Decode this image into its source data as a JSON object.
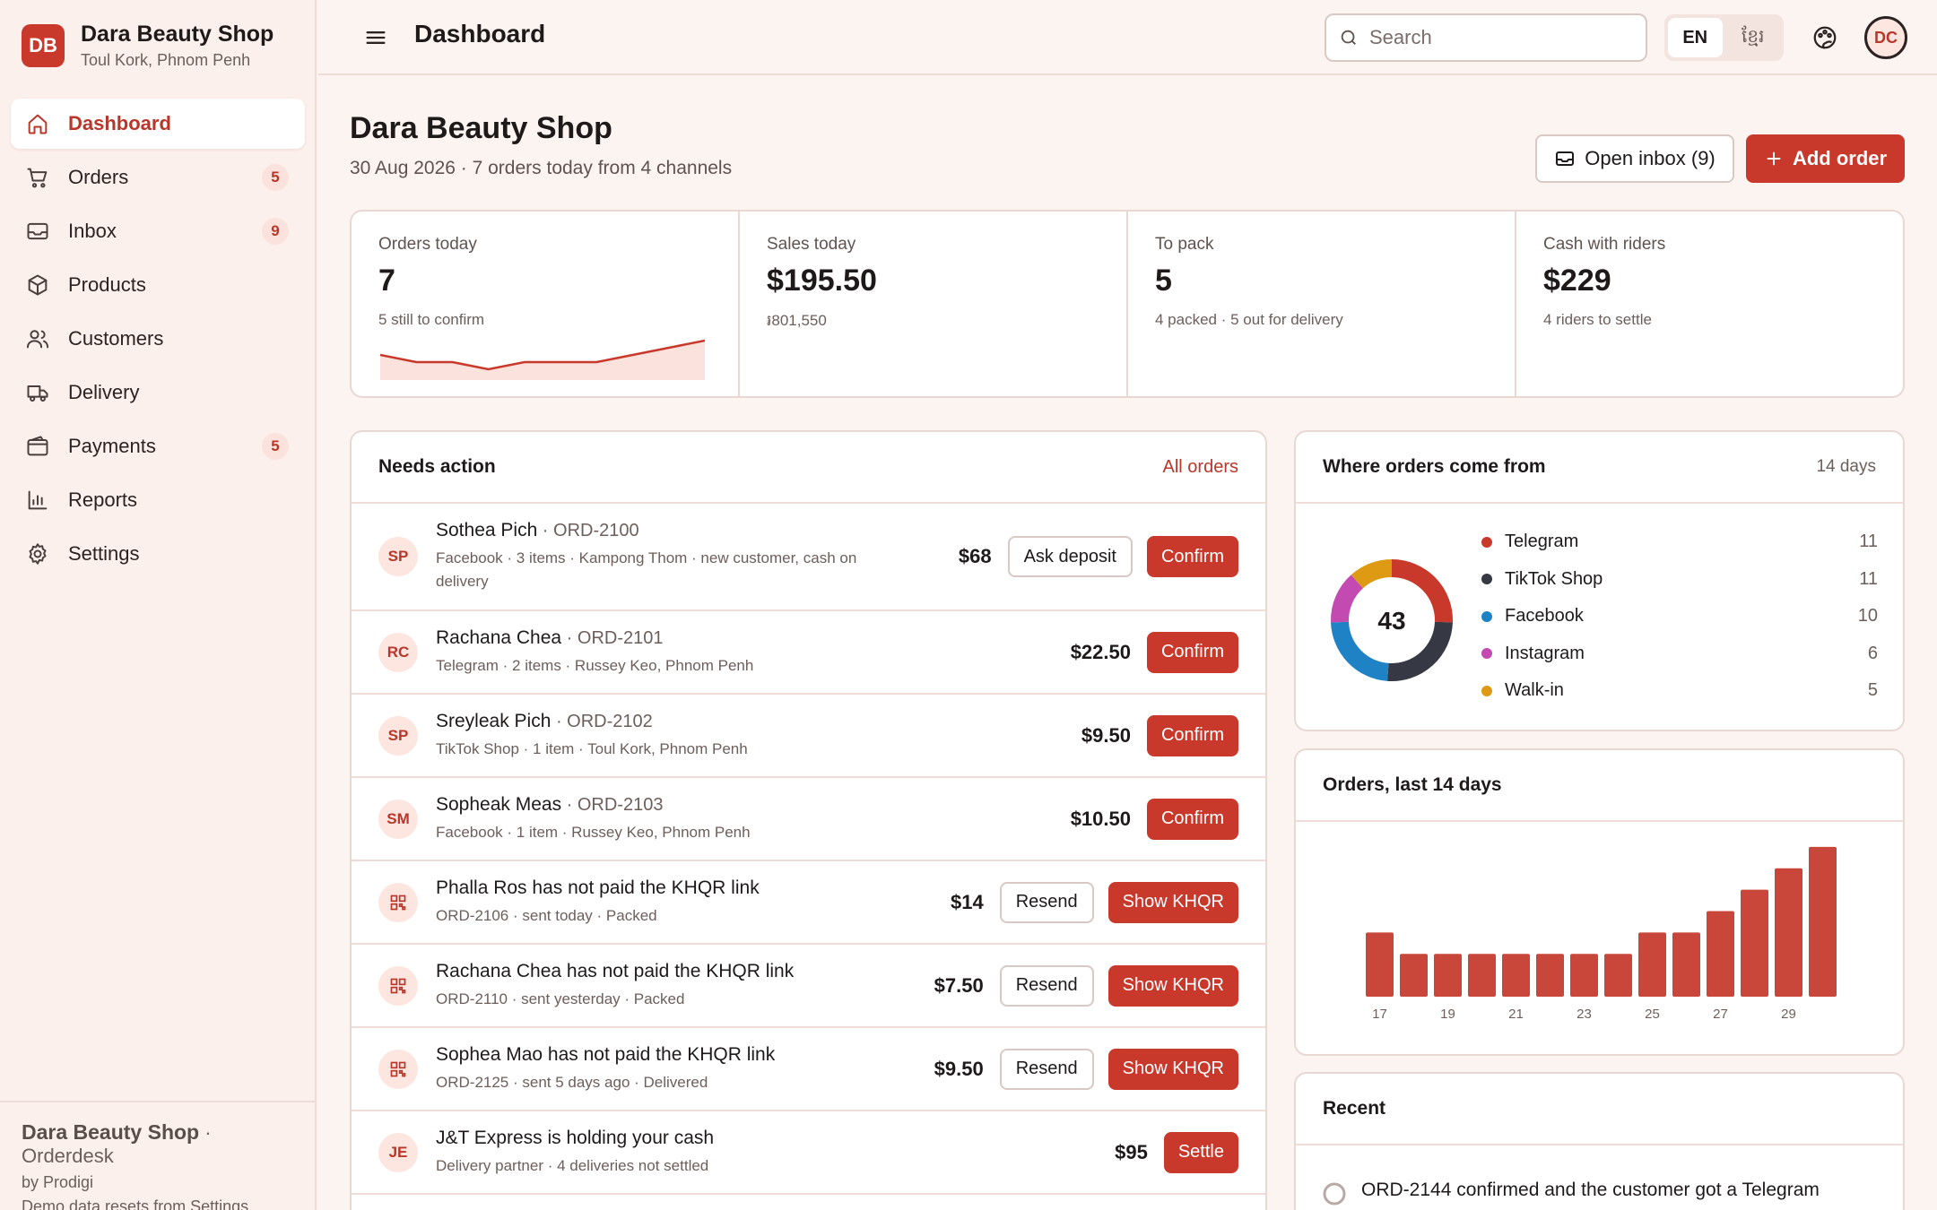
{
  "brand": {
    "initials": "DB",
    "name": "Dara Beauty Shop",
    "location": "Toul Kork, Phnom Penh"
  },
  "nav": [
    {
      "label": "Dashboard",
      "icon": "home-icon",
      "active": true,
      "badge": ""
    },
    {
      "label": "Orders",
      "icon": "cart-icon",
      "badge": "5"
    },
    {
      "label": "Inbox",
      "icon": "inbox-icon",
      "badge": "9"
    },
    {
      "label": "Products",
      "icon": "box-icon",
      "badge": ""
    },
    {
      "label": "Customers",
      "icon": "users-icon",
      "badge": ""
    },
    {
      "label": "Delivery",
      "icon": "truck-icon",
      "badge": ""
    },
    {
      "label": "Payments",
      "icon": "wallet-icon",
      "badge": "5"
    },
    {
      "label": "Reports",
      "icon": "bar-chart-icon",
      "badge": ""
    },
    {
      "label": "Settings",
      "icon": "gear-icon",
      "badge": ""
    }
  ],
  "sidebar_footer": {
    "name": "Dara Beauty Shop",
    "product": "· Orderdesk",
    "by": "by Prodigi",
    "note": "Demo data resets from Settings"
  },
  "topbar": {
    "title": "Dashboard",
    "search_placeholder": "Search",
    "lang_en": "EN",
    "lang_km": "ខ្មែរ",
    "user_initials": "DC"
  },
  "header": {
    "title": "Dara Beauty Shop",
    "subtitle": "30 Aug 2026 · 7 orders today from 4 channels",
    "inbox_label": "Open inbox (9)",
    "add_label": "Add order"
  },
  "kpis": [
    {
      "label": "Orders today",
      "value": "7",
      "sub": "5 still to confirm"
    },
    {
      "label": "Sales today",
      "value": "$195.50",
      "sub": "៛801,550"
    },
    {
      "label": "To pack",
      "value": "5",
      "sub": "4 packed · 5 out for delivery"
    },
    {
      "label": "Cash with riders",
      "value": "$229",
      "sub": "4 riders to settle"
    }
  ],
  "sparkline": {
    "values": [
      3,
      2,
      2,
      1,
      2,
      2,
      2,
      3,
      4,
      5
    ]
  },
  "needs_action": {
    "title": "Needs action",
    "link": "All orders",
    "rows": [
      {
        "avatar": "SP",
        "name": "Sothea Pich",
        "id": " · ORD-2100",
        "sub": "Facebook · 3 items · Kampong Thom · new customer, cash on delivery",
        "amount": "$68",
        "secondary": "Ask deposit",
        "primary": "Confirm"
      },
      {
        "avatar": "RC",
        "name": "Rachana Chea",
        "id": " · ORD-2101",
        "sub": "Telegram · 2 items · Russey Keo, Phnom Penh",
        "amount": "$22.50",
        "secondary": "",
        "primary": "Confirm"
      },
      {
        "avatar": "SP",
        "name": "Sreyleak Pich",
        "id": " · ORD-2102",
        "sub": "TikTok Shop · 1 item · Toul Kork, Phnom Penh",
        "amount": "$9.50",
        "secondary": "",
        "primary": "Confirm"
      },
      {
        "avatar": "SM",
        "name": "Sopheak Meas",
        "id": " · ORD-2103",
        "sub": "Facebook · 1 item · Russey Keo, Phnom Penh",
        "amount": "$10.50",
        "secondary": "",
        "primary": "Confirm"
      },
      {
        "avatar": "qr-icon",
        "name": "Phalla Ros has not paid the KHQR link",
        "id": "",
        "sub": "ORD-2106 · sent today · Packed",
        "amount": "$14",
        "secondary": "Resend",
        "primary": "Show KHQR"
      },
      {
        "avatar": "qr-icon",
        "name": "Rachana Chea has not paid the KHQR link",
        "id": "",
        "sub": "ORD-2110 · sent yesterday · Packed",
        "amount": "$7.50",
        "secondary": "Resend",
        "primary": "Show KHQR"
      },
      {
        "avatar": "qr-icon",
        "name": "Sophea Mao has not paid the KHQR link",
        "id": "",
        "sub": "ORD-2125 · sent 5 days ago · Delivered",
        "amount": "$9.50",
        "secondary": "Resend",
        "primary": "Show KHQR"
      },
      {
        "avatar": "JE",
        "name": "J&T Express is holding your cash",
        "id": "",
        "sub": "Delivery partner · 4 deliveries not settled",
        "amount": "$95",
        "secondary": "",
        "primary": "Settle"
      }
    ]
  },
  "sources": {
    "title": "Where orders come from",
    "range": "14 days",
    "total": "43",
    "colors": {
      "Telegram": "#c8392b",
      "TikTok Shop": "#363844",
      "Facebook": "#1f82c4",
      "Instagram": "#c24ab0",
      "Walk-in": "#dd9a12"
    }
  },
  "chart_data": [
    {
      "type": "pie",
      "categories": [
        "Telegram",
        "TikTok Shop",
        "Facebook",
        "Instagram",
        "Walk-in"
      ],
      "values": [
        11,
        11,
        10,
        6,
        5
      ],
      "center_label": "43"
    },
    {
      "type": "bar",
      "title": "Orders, last 14 days",
      "categories": [
        "17",
        "18",
        "19",
        "20",
        "21",
        "22",
        "23",
        "24",
        "25",
        "26",
        "27",
        "28",
        "29",
        "30"
      ],
      "tick_labels": [
        "17",
        "19",
        "21",
        "23",
        "25",
        "27",
        "29"
      ],
      "values": [
        3,
        2,
        2,
        2,
        2,
        2,
        2,
        2,
        3,
        3,
        4,
        5,
        6,
        7
      ],
      "ylim": [
        0,
        7.5
      ],
      "color": "#c8473a"
    }
  ],
  "recent": {
    "title": "Recent",
    "item": "ORD-2144 confirmed and the customer got a Telegram"
  }
}
